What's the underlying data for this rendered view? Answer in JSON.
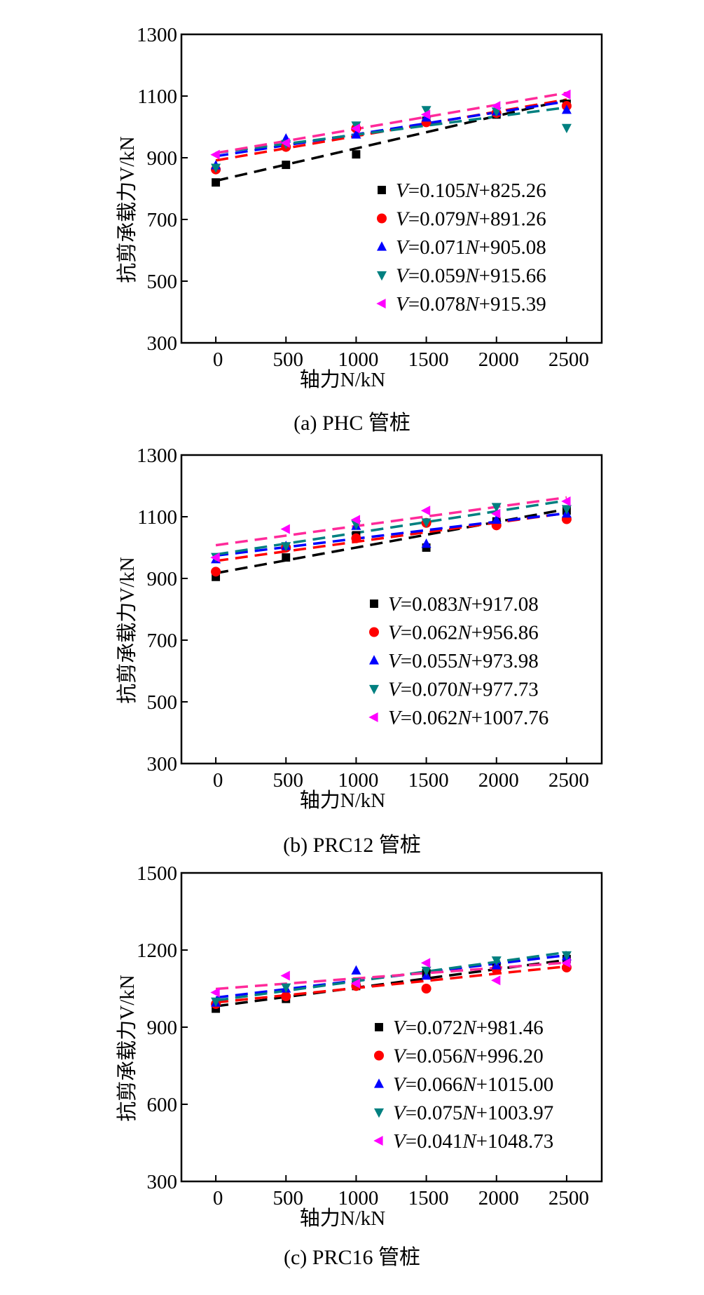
{
  "chart_data": [
    {
      "type": "scatter",
      "title": "(a) PHC 管桩",
      "xlabel": "轴力N/kN",
      "ylabel": "抗剪承载力V/kN",
      "xlim": [
        -245,
        2750
      ],
      "ylim": [
        300,
        1300
      ],
      "xticks": [
        0,
        500,
        1000,
        1500,
        2000,
        2500
      ],
      "yticks": [
        300,
        500,
        700,
        900,
        1100,
        1300
      ],
      "x": [
        0,
        500,
        1000,
        1500,
        2000,
        2500
      ],
      "legend_position": "lower-right",
      "series": [
        {
          "name": "V=0.105N+825.26",
          "marker": "square",
          "color": "#000000",
          "slope": 0.105,
          "intercept": 825.26,
          "values": [
            820,
            877,
            911,
            1020,
            1040,
            1075
          ]
        },
        {
          "name": "V=0.079N+891.26",
          "marker": "circle",
          "color": "#ff0000",
          "slope": 0.079,
          "intercept": 891.26,
          "values": [
            862,
            935,
            995,
            1015,
            1045,
            1068
          ]
        },
        {
          "name": "V=0.071N+905.08",
          "marker": "triangle-up",
          "color": "#0000ff",
          "slope": 0.071,
          "intercept": 905.08,
          "values": [
            875,
            962,
            975,
            1030,
            1050,
            1055
          ]
        },
        {
          "name": "V=0.059N+915.66",
          "marker": "triangle-down",
          "color": "#008080",
          "slope": 0.059,
          "intercept": 915.66,
          "values": [
            868,
            945,
            1005,
            1055,
            1050,
            997
          ]
        },
        {
          "name": "V=0.078N+915.39",
          "marker": "triangle-left",
          "color": "#ff00ff",
          "slope": 0.078,
          "intercept": 915.39,
          "values": [
            910,
            948,
            995,
            1040,
            1068,
            1105
          ]
        }
      ]
    },
    {
      "type": "scatter",
      "title": "(b) PRC12 管桩",
      "xlabel": "轴力N/kN",
      "ylabel": "抗剪承载力V/kN",
      "xlim": [
        -245,
        2750
      ],
      "ylim": [
        300,
        1300
      ],
      "xticks": [
        0,
        500,
        1000,
        1500,
        2000,
        2500
      ],
      "yticks": [
        300,
        500,
        700,
        900,
        1100,
        1300
      ],
      "x": [
        0,
        500,
        1000,
        1500,
        2000,
        2500
      ],
      "legend_position": "lower-right",
      "series": [
        {
          "name": "V=0.083N+917.08",
          "marker": "square",
          "color": "#000000",
          "slope": 0.083,
          "intercept": 917.08,
          "values": [
            905,
            968,
            1040,
            1000,
            1085,
            1120
          ]
        },
        {
          "name": "V=0.062N+956.86",
          "marker": "circle",
          "color": "#ff0000",
          "slope": 0.062,
          "intercept": 956.86,
          "values": [
            922,
            1000,
            1030,
            1080,
            1072,
            1092
          ]
        },
        {
          "name": "V=0.055N+973.98",
          "marker": "triangle-up",
          "color": "#0000ff",
          "slope": 0.055,
          "intercept": 973.98,
          "values": [
            962,
            1005,
            1070,
            1012,
            1090,
            1110
          ]
        },
        {
          "name": "V=0.070N+977.73",
          "marker": "triangle-down",
          "color": "#008080",
          "slope": 0.07,
          "intercept": 977.73,
          "values": [
            970,
            1005,
            1075,
            1082,
            1132,
            1125
          ]
        },
        {
          "name": "V=0.062N+1007.76",
          "marker": "triangle-left",
          "color": "#ff00ff",
          "slope": 0.062,
          "intercept": 1007.76,
          "values": [
            968,
            1060,
            1090,
            1120,
            1110,
            1150
          ]
        }
      ]
    },
    {
      "type": "scatter",
      "title": "(c) PRC16 管桩",
      "xlabel": "轴力N/kN",
      "ylabel": "抗剪承载力V/kN",
      "xlim": [
        -245,
        2750
      ],
      "ylim": [
        300,
        1500
      ],
      "xticks": [
        0,
        500,
        1000,
        1500,
        2000,
        2500
      ],
      "yticks": [
        300,
        600,
        900,
        1200,
        1500
      ],
      "x": [
        0,
        500,
        1000,
        1500,
        2000,
        2500
      ],
      "legend_position": "lower-right",
      "series": [
        {
          "name": "V=0.072N+981.46",
          "marker": "square",
          "color": "#000000",
          "slope": 0.072,
          "intercept": 981.46,
          "values": [
            972,
            1010,
            1060,
            1110,
            1130,
            1165
          ]
        },
        {
          "name": "V=0.056N+996.20",
          "marker": "circle",
          "color": "#ff0000",
          "slope": 0.056,
          "intercept": 996.2,
          "values": [
            990,
            1020,
            1060,
            1050,
            1125,
            1132
          ]
        },
        {
          "name": "V=0.066N+1015.00",
          "marker": "triangle-up",
          "color": "#0000ff",
          "slope": 0.066,
          "intercept": 1015.0,
          "values": [
            995,
            1050,
            1120,
            1100,
            1140,
            1175
          ]
        },
        {
          "name": "V=0.075N+1003.97",
          "marker": "triangle-down",
          "color": "#008080",
          "slope": 0.075,
          "intercept": 1003.97,
          "values": [
            1000,
            1055,
            1075,
            1120,
            1160,
            1180
          ]
        },
        {
          "name": "V=0.041N+1048.73",
          "marker": "triangle-left",
          "color": "#ff00ff",
          "slope": 0.041,
          "intercept": 1048.73,
          "values": [
            1035,
            1100,
            1070,
            1150,
            1082,
            1150
          ]
        }
      ]
    }
  ]
}
